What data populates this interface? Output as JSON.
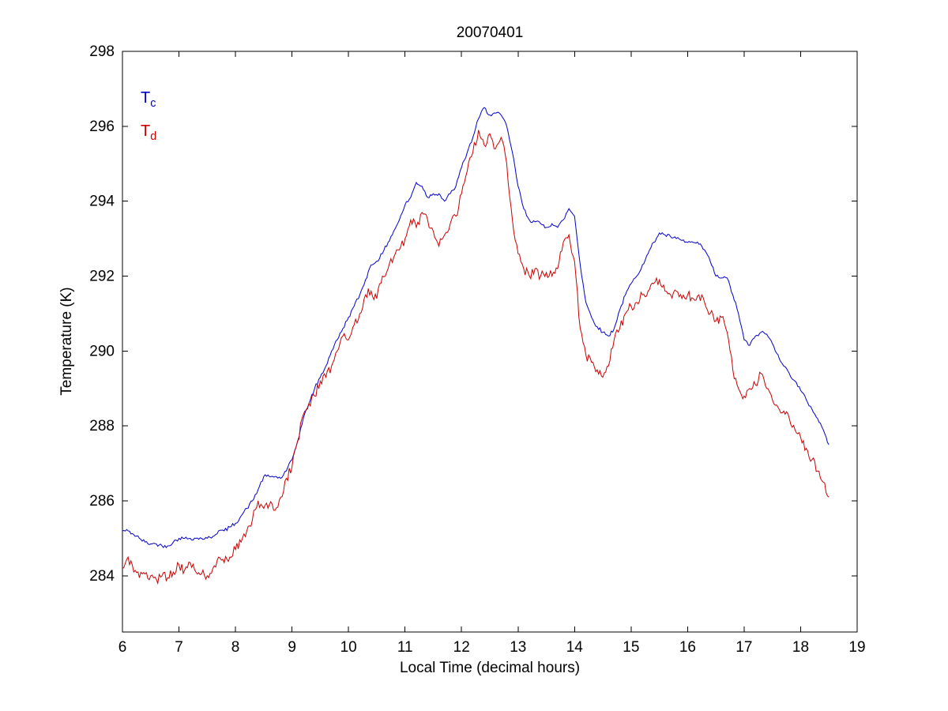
{
  "chart_data": {
    "type": "line",
    "title": "20070401",
    "xlabel": "Local Time (decimal hours)",
    "ylabel": "Temperature (K)",
    "xlim": [
      6,
      19
    ],
    "ylim": [
      282.5,
      298
    ],
    "x_ticks": [
      6,
      7,
      8,
      9,
      10,
      11,
      12,
      13,
      14,
      15,
      16,
      17,
      18,
      19
    ],
    "y_ticks": [
      284,
      286,
      288,
      290,
      292,
      294,
      296,
      298
    ],
    "grid": false,
    "legend_position": "upper-left-inside",
    "noise_seed": 42,
    "legend": [
      {
        "main": "T",
        "sub": "c",
        "color": "#0000cc"
      },
      {
        "main": "T",
        "sub": "d",
        "color": "#cc0000"
      }
    ],
    "series": [
      {
        "name": "Tc",
        "color": "#0000cc",
        "noise": 0.05,
        "x_start": 6.0,
        "x_step": 0.1,
        "values": [
          285.2,
          285.2,
          285.1,
          285.0,
          284.9,
          284.85,
          284.85,
          284.8,
          284.8,
          284.9,
          285.0,
          285.0,
          285.0,
          285.0,
          285.0,
          285.0,
          285.05,
          285.2,
          285.2,
          285.3,
          285.4,
          285.6,
          285.8,
          286.0,
          286.3,
          286.65,
          286.65,
          286.65,
          286.6,
          286.8,
          287.1,
          287.6,
          288.2,
          288.6,
          289.0,
          289.3,
          289.6,
          290.0,
          290.3,
          290.6,
          290.9,
          291.2,
          291.5,
          291.9,
          292.3,
          292.4,
          292.6,
          292.9,
          293.2,
          293.5,
          293.9,
          294.1,
          294.5,
          294.4,
          294.1,
          294.2,
          294.2,
          294.0,
          294.2,
          294.4,
          294.9,
          295.3,
          295.7,
          296.2,
          296.5,
          296.3,
          296.35,
          296.3,
          296.0,
          295.3,
          294.4,
          293.8,
          293.5,
          293.45,
          293.4,
          293.3,
          293.4,
          293.3,
          293.5,
          293.8,
          293.6,
          292.3,
          291.3,
          290.9,
          290.65,
          290.5,
          290.4,
          290.6,
          291.1,
          291.5,
          291.8,
          292.0,
          292.3,
          292.6,
          292.9,
          293.15,
          293.1,
          293.05,
          293.0,
          292.95,
          292.9,
          292.9,
          292.85,
          292.7,
          292.4,
          292.0,
          291.95,
          291.95,
          291.5,
          291.0,
          290.3,
          290.15,
          290.4,
          290.5,
          290.45,
          290.2,
          289.9,
          289.6,
          289.4,
          289.2,
          288.95,
          288.7,
          288.45,
          288.2,
          287.9,
          287.5
        ]
      },
      {
        "name": "Td",
        "color": "#cc0000",
        "noise": 0.13,
        "x_start": 6.0,
        "x_step": 0.1,
        "values": [
          284.2,
          284.5,
          284.1,
          283.95,
          284.05,
          284.0,
          283.9,
          284.0,
          283.95,
          284.1,
          284.3,
          284.15,
          284.35,
          284.1,
          284.05,
          284.0,
          284.2,
          284.5,
          284.35,
          284.5,
          284.7,
          284.9,
          285.2,
          285.5,
          286.0,
          285.8,
          285.9,
          285.75,
          286.1,
          286.6,
          286.9,
          287.6,
          288.3,
          288.6,
          288.8,
          289.2,
          289.3,
          289.6,
          290.0,
          290.4,
          290.3,
          290.7,
          291.0,
          291.5,
          291.6,
          291.4,
          292.0,
          292.2,
          292.5,
          292.7,
          293.0,
          293.5,
          293.3,
          293.7,
          293.5,
          293.2,
          292.8,
          293.1,
          293.4,
          293.6,
          294.2,
          294.8,
          295.3,
          295.9,
          295.5,
          295.8,
          295.4,
          295.7,
          295.0,
          293.5,
          292.6,
          292.2,
          292.0,
          292.2,
          292.0,
          292.1,
          292.0,
          292.2,
          292.9,
          293.1,
          292.4,
          290.6,
          289.9,
          289.7,
          289.5,
          289.3,
          289.6,
          290.3,
          290.6,
          291.0,
          291.2,
          291.3,
          291.5,
          291.6,
          291.8,
          291.9,
          291.6,
          291.5,
          291.6,
          291.4,
          291.5,
          291.4,
          291.5,
          291.3,
          291.0,
          290.8,
          290.9,
          290.5,
          289.5,
          289.0,
          288.8,
          289.0,
          289.1,
          289.4,
          289.0,
          288.7,
          288.5,
          288.4,
          288.2,
          287.9,
          287.7,
          287.4,
          287.1,
          286.8,
          286.5,
          286.1
        ]
      }
    ]
  }
}
